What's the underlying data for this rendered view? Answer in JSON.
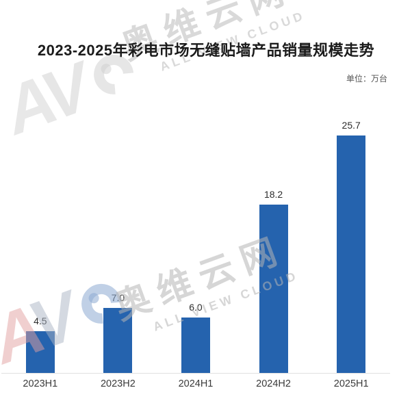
{
  "title": "2023-2025年彩电市场无缝贴墙产品销量规模走势",
  "unit_label": "单位：万台",
  "watermark": {
    "logo_letters": [
      "A",
      "V"
    ],
    "brand_cn": "奥维云网",
    "brand_en": "ALL VIEW CLOUD"
  },
  "colors": {
    "bar": "#2563ae",
    "axis_line": "#e0e0e0",
    "title_text": "#1b1b1b",
    "watermark_blue": "#9db9d8",
    "watermark_pink": "#e2a0a0"
  },
  "chart_data": {
    "type": "bar",
    "title": "2023-2025年彩电市场无缝贴墙产品销量规模走势",
    "unit": "万台",
    "categories": [
      "2023H1",
      "2023H2",
      "2024H1",
      "2024H2",
      "2025H1"
    ],
    "values": [
      4.5,
      7.0,
      6.0,
      18.2,
      25.7
    ],
    "value_labels": [
      "4.5",
      "7.0",
      "6.0",
      "18.2",
      "25.7"
    ],
    "xlabel": "",
    "ylabel": "",
    "ylim": [
      0,
      28
    ],
    "grid": false,
    "legend": false,
    "bar_color": "#2563ae"
  }
}
